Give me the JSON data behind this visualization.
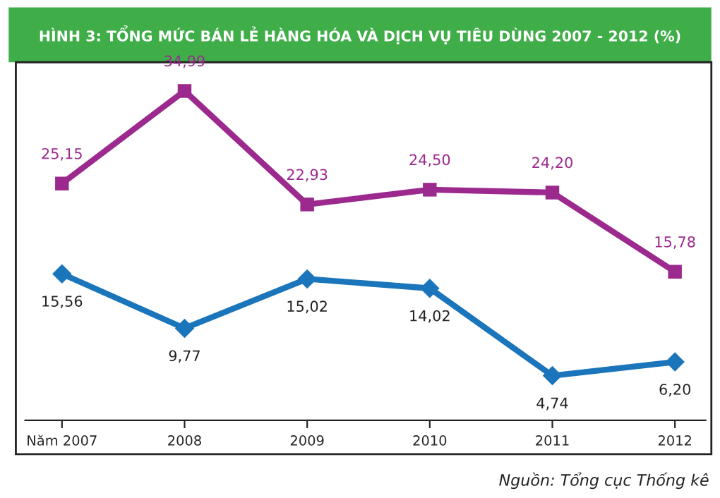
{
  "chart_data": {
    "type": "line",
    "title": "HÌNH 3: TỔNG MỨC BÁN LẺ HÀNG HÓA VÀ DỊCH VỤ TIÊU DÙNG 2007 - 2012 (%)",
    "categories": [
      "Năm 2007",
      "2008",
      "2009",
      "2010",
      "2011",
      "2012"
    ],
    "series": [
      {
        "color": "#9c2a8e",
        "marker": "square",
        "values": [
          25.15,
          34.99,
          22.93,
          24.5,
          24.2,
          15.78
        ],
        "value_labels": [
          "25,15",
          "34,99",
          "22,93",
          "24,50",
          "24,20",
          "15,78"
        ]
      },
      {
        "color": "#1b75bb",
        "marker": "diamond",
        "values": [
          15.56,
          9.77,
          15.02,
          14.02,
          4.74,
          6.2
        ],
        "value_labels": [
          "15,56",
          "9,77",
          "15,02",
          "14,02",
          "4,74",
          "6,20"
        ]
      }
    ],
    "grid": false,
    "legend": false,
    "tick_labels": "x",
    "annotations": [
      "Nguồn: Tổng cục Thống kê"
    ]
  }
}
